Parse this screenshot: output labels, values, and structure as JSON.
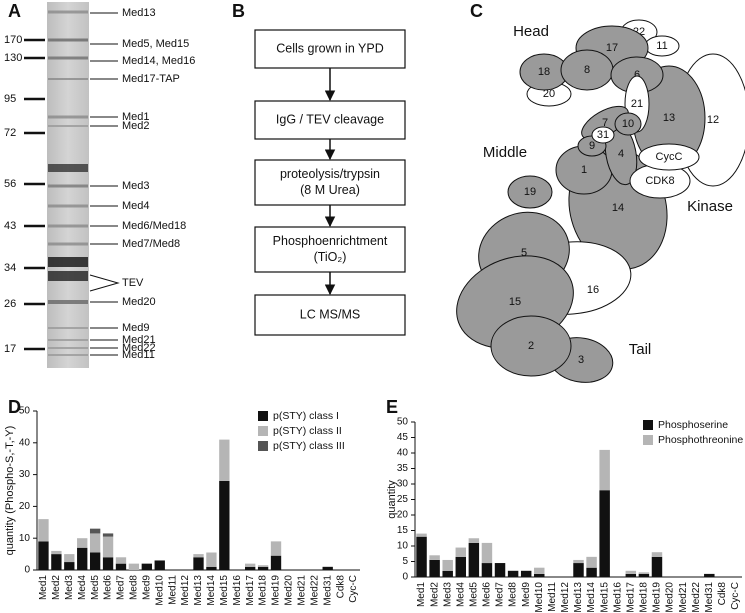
{
  "panel_labels": [
    "A",
    "B",
    "C",
    "D",
    "E"
  ],
  "gel": {
    "markers": [
      170,
      130,
      95,
      72,
      56,
      43,
      34,
      26,
      17
    ],
    "bands": [
      "Med13",
      "Med5, Med15",
      "Med14, Med16",
      "Med17-TAP",
      "Med1",
      "Med2",
      "Med3",
      "Med4",
      "Med6/Med18",
      "Med7/Med8",
      "TEV",
      "Med20",
      "Med9",
      "Med21",
      "Med22",
      "Med11"
    ]
  },
  "flowchart": {
    "steps": [
      {
        "lines": [
          "Cells grown in YPD"
        ]
      },
      {
        "lines": [
          "IgG / TEV cleavage"
        ]
      },
      {
        "lines": [
          "proteolysis/trypsin",
          "(8 M Urea)"
        ]
      },
      {
        "lines": [
          "Phosphoenrichtment",
          "(TiO₂)"
        ]
      },
      {
        "lines": [
          "LC MS/MS"
        ]
      }
    ]
  },
  "diagram": {
    "regions": [
      "Head",
      "Middle",
      "Kinase",
      "Tail"
    ],
    "nodes": [
      {
        "label": "14",
        "color": "#9a9a9a"
      },
      {
        "label": "12",
        "color": "#ffffff"
      },
      {
        "label": "13",
        "color": "#9a9a9a"
      },
      {
        "label": "22",
        "color": "#ffffff"
      },
      {
        "label": "11",
        "color": "#ffffff"
      },
      {
        "label": "17",
        "color": "#9a9a9a"
      },
      {
        "label": "20",
        "color": "#ffffff"
      },
      {
        "label": "18",
        "color": "#9a9a9a"
      },
      {
        "label": "8",
        "color": "#9a9a9a"
      },
      {
        "label": "6",
        "color": "#9a9a9a"
      },
      {
        "label": "21",
        "color": "#ffffff"
      },
      {
        "label": "1",
        "color": "#9a9a9a"
      },
      {
        "label": "4",
        "color": "#9a9a9a"
      },
      {
        "label": "7",
        "color": "#9a9a9a"
      },
      {
        "label": "10",
        "color": "#9a9a9a"
      },
      {
        "label": "9",
        "color": "#9a9a9a"
      },
      {
        "label": "31",
        "color": "#ffffff"
      },
      {
        "label": "CDK8",
        "color": "#ffffff"
      },
      {
        "label": "CycC",
        "color": "#ffffff"
      },
      {
        "label": "19",
        "color": "#9a9a9a"
      },
      {
        "label": "16",
        "color": "#ffffff"
      },
      {
        "label": "5",
        "color": "#9a9a9a"
      },
      {
        "label": "15",
        "color": "#9a9a9a"
      },
      {
        "label": "3",
        "color": "#9a9a9a"
      },
      {
        "label": "2",
        "color": "#9a9a9a"
      }
    ]
  },
  "chart_data": [
    {
      "type": "bar",
      "stacked": true,
      "ylabel": "quantity (Phospho-S,-T,-Y)",
      "categories": [
        "Med1",
        "Med2",
        "Med3",
        "Med4",
        "Med5",
        "Med6",
        "Med7",
        "Med8",
        "Med9",
        "Med10",
        "Med11",
        "Med12",
        "Med13",
        "Med14",
        "Med15",
        "Med16",
        "Med17",
        "Med18",
        "Med19",
        "Med20",
        "Med21",
        "Med22",
        "Med31",
        "Cdk8",
        "Cyc-C"
      ],
      "series": [
        {
          "name": "p(STY) class I",
          "color": "#111111",
          "values": [
            9,
            5,
            2.5,
            7,
            5.5,
            4,
            2,
            0,
            2,
            3,
            0,
            0,
            4,
            1,
            28,
            0,
            1,
            1,
            4.5,
            0,
            0,
            0,
            1,
            0,
            0
          ]
        },
        {
          "name": "p(STY) class II",
          "color": "#b5b5b5",
          "values": [
            7,
            1,
            2.5,
            3,
            6,
            6.5,
            2,
            2,
            0,
            0,
            0,
            0,
            1,
            4.5,
            13,
            0,
            1,
            0.5,
            4.5,
            0,
            0,
            0,
            0,
            0,
            0
          ]
        },
        {
          "name": "p(STY) class III",
          "color": "#555555",
          "values": [
            0,
            0,
            0,
            0,
            1.5,
            1,
            0,
            0,
            0,
            0,
            0,
            0,
            0,
            0,
            0,
            0,
            0,
            0,
            0,
            0,
            0,
            0,
            0,
            0,
            0
          ]
        }
      ],
      "ylim": [
        0,
        50
      ],
      "yticks": [
        0,
        10,
        20,
        30,
        40,
        50
      ],
      "legend": "upper right"
    },
    {
      "type": "bar",
      "stacked": true,
      "ylabel": "quantity",
      "categories": [
        "Med1",
        "Med2",
        "Med3",
        "Med4",
        "Med5",
        "Med6",
        "Med7",
        "Med8",
        "Med9",
        "Med10",
        "Med11",
        "Med12",
        "Med13",
        "Med14",
        "Med15",
        "Med16",
        "Med17",
        "Med18",
        "Med19",
        "Med20",
        "Med21",
        "Med22",
        "Med31",
        "Cdk8",
        "Cyc-C"
      ],
      "series": [
        {
          "name": "Phosphoserine",
          "color": "#111111",
          "values": [
            13,
            5.5,
            2,
            6.5,
            11,
            4.5,
            4.5,
            2,
            2,
            1,
            0,
            0,
            4.5,
            3,
            28,
            0,
            1,
            1,
            6.5,
            0,
            0,
            0,
            1,
            0,
            0
          ]
        },
        {
          "name": "Phosphothreonine",
          "color": "#b5b5b5",
          "values": [
            1,
            1.5,
            3.5,
            3,
            1.5,
            6.5,
            0,
            0,
            0,
            2,
            0,
            0,
            1,
            3.5,
            13,
            0,
            1,
            0.5,
            1.5,
            0,
            0,
            0,
            0,
            0,
            0
          ]
        }
      ],
      "ylim": [
        0,
        50
      ],
      "yticks": [
        0,
        5,
        10,
        15,
        20,
        25,
        30,
        35,
        40,
        45,
        50
      ],
      "legend": "upper right"
    }
  ]
}
